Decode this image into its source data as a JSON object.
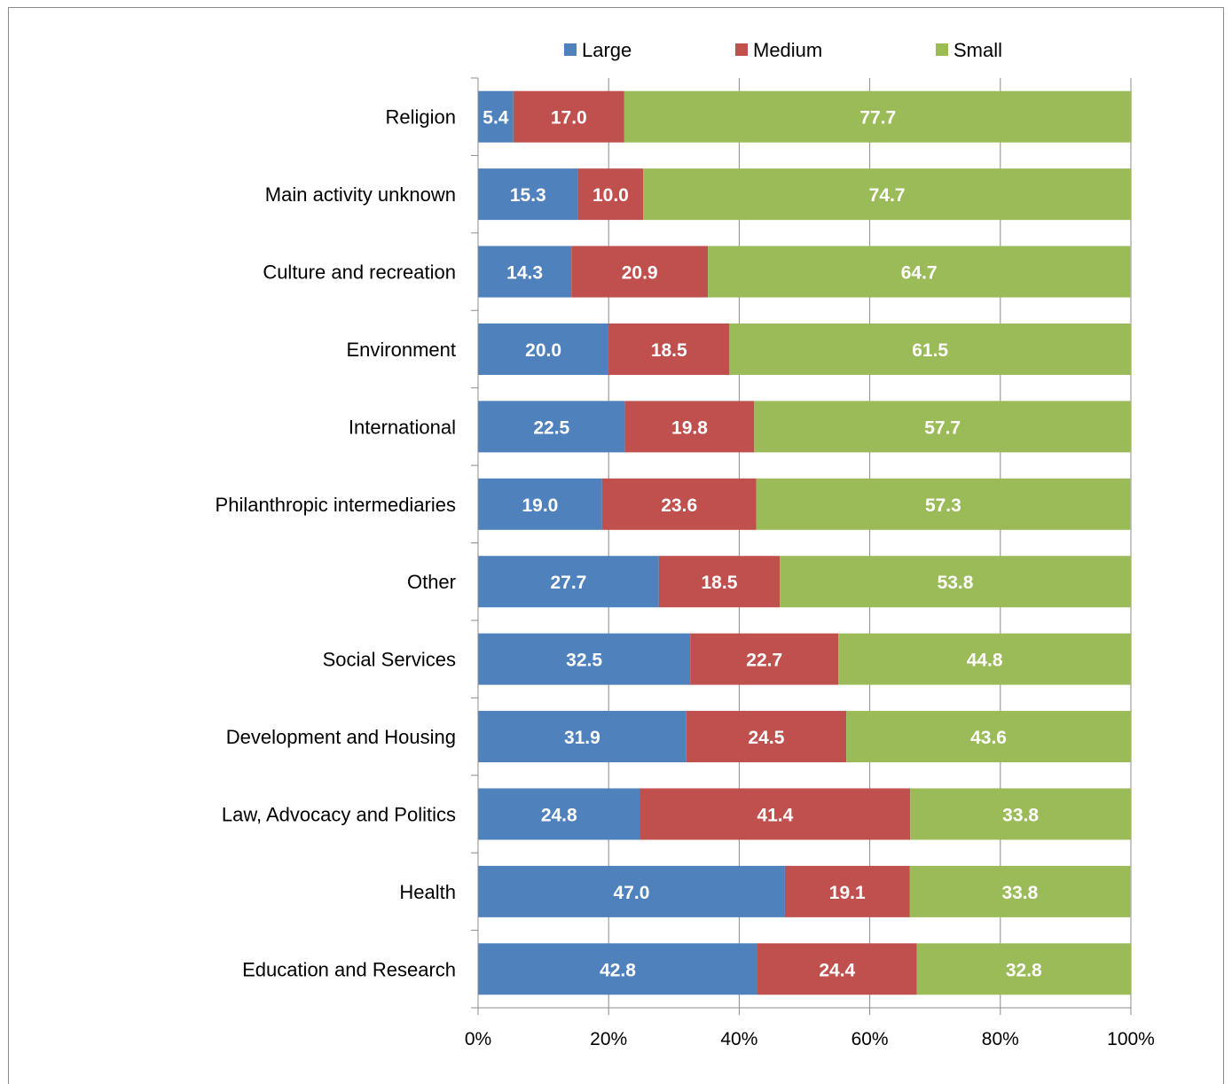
{
  "chart_data": {
    "type": "bar",
    "orientation": "horizontal",
    "stacked": true,
    "categories": [
      "Religion",
      "Main activity unknown",
      "Culture and recreation",
      "Environment",
      "International",
      "Philanthropic intermediaries",
      "Other",
      "Social Services",
      "Development and Housing",
      "Law, Advocacy and Politics",
      "Health",
      "Education and Research"
    ],
    "series": [
      {
        "name": "Large",
        "color": "#4f81bd",
        "values": [
          5.4,
          15.3,
          14.3,
          20.0,
          22.5,
          19.0,
          27.7,
          32.5,
          31.9,
          24.8,
          47.0,
          42.8
        ]
      },
      {
        "name": "Medium",
        "color": "#c0504d",
        "values": [
          17.0,
          10.0,
          20.9,
          18.5,
          19.8,
          23.6,
          18.5,
          22.7,
          24.5,
          41.4,
          19.1,
          24.4
        ]
      },
      {
        "name": "Small",
        "color": "#9bbb59",
        "values": [
          77.7,
          74.7,
          64.7,
          61.5,
          57.7,
          57.3,
          53.8,
          44.8,
          43.6,
          33.8,
          33.8,
          32.8
        ]
      }
    ],
    "xlim": [
      0,
      100
    ],
    "xticks": [
      "0%",
      "20%",
      "40%",
      "60%",
      "80%",
      "100%"
    ],
    "grid": true,
    "legend_position": "top",
    "title": "",
    "xlabel": "",
    "ylabel": ""
  }
}
